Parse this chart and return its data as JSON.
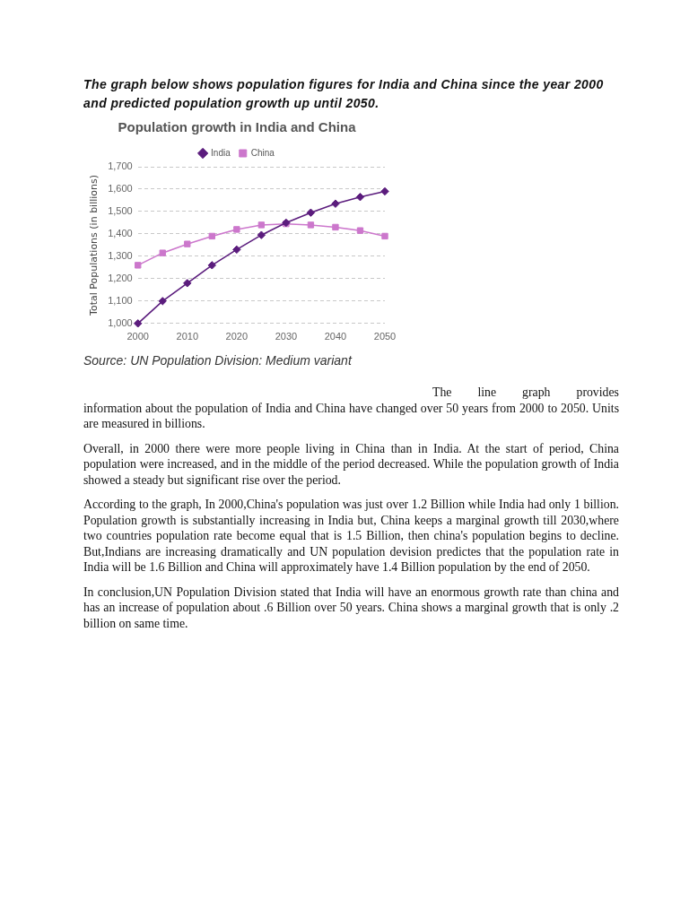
{
  "chart_data": {
    "type": "line",
    "title": "Population growth in India and China",
    "ylabel": "Total Populations (in billions)",
    "x": [
      2000,
      2005,
      2010,
      2015,
      2020,
      2025,
      2030,
      2035,
      2040,
      2045,
      2050
    ],
    "series": [
      {
        "name": "India",
        "color": "#5b1c7d",
        "marker": "diamond",
        "values": [
          1000,
          1100,
          1180,
          1260,
          1330,
          1395,
          1450,
          1495,
          1535,
          1565,
          1590
        ]
      },
      {
        "name": "China",
        "color": "#cc77cc",
        "marker": "square",
        "values": [
          1260,
          1315,
          1355,
          1390,
          1420,
          1440,
          1445,
          1440,
          1430,
          1415,
          1390
        ]
      }
    ],
    "xlim": [
      2000,
      2050
    ],
    "xticks": [
      2000,
      2010,
      2020,
      2030,
      2040,
      2050
    ],
    "ylim": [
      1000,
      1700
    ],
    "yticks": [
      {
        "value": 1000,
        "label": "1,000"
      },
      {
        "value": 1100,
        "label": "1,100"
      },
      {
        "value": 1200,
        "label": "1,200"
      },
      {
        "value": 1300,
        "label": "1,300"
      },
      {
        "value": 1400,
        "label": "1,400"
      },
      {
        "value": 1500,
        "label": "1,500"
      },
      {
        "value": 1600,
        "label": "1,600"
      },
      {
        "value": 1700,
        "label": "1,700"
      }
    ],
    "grid": "y",
    "legend": "top",
    "annotations": [
      "The graph below shows population figures for India and China since the year 2000 and predicted population growth up until 2050.",
      "Source: UN Population Division: Medium variant",
      "The line graph provides information about the population of India and China have changed over 50 years from 2000 to 2050. Units are measured in billions.",
      "Overall, in 2000 there were more people living in China than in India. At the start of period, China population were increased, and in the middle of the period decreased. While the population growth of India showed a steady but significant rise over the period.",
      "According to the graph, In 2000,China's population was just over 1.2 Billion while India had only 1 billion. Population growth is substantially increasing in India but, China keeps a marginal growth till 2030,where two countries population rate become equal that is 1.5 Billion, then china's population begins to decline. But,Indians are increasing dramatically and UN population devision predictes that the population rate in India will be 1.6 Billion and China will approximately have 1.4 Billion population by the end of 2050.",
      "In conclusion,UN Population Division stated that India will have an enormous growth rate than china and has an increase of population about .6 Billion over 50 years. China shows a marginal growth that is only .2 billion on same time."
    ]
  }
}
